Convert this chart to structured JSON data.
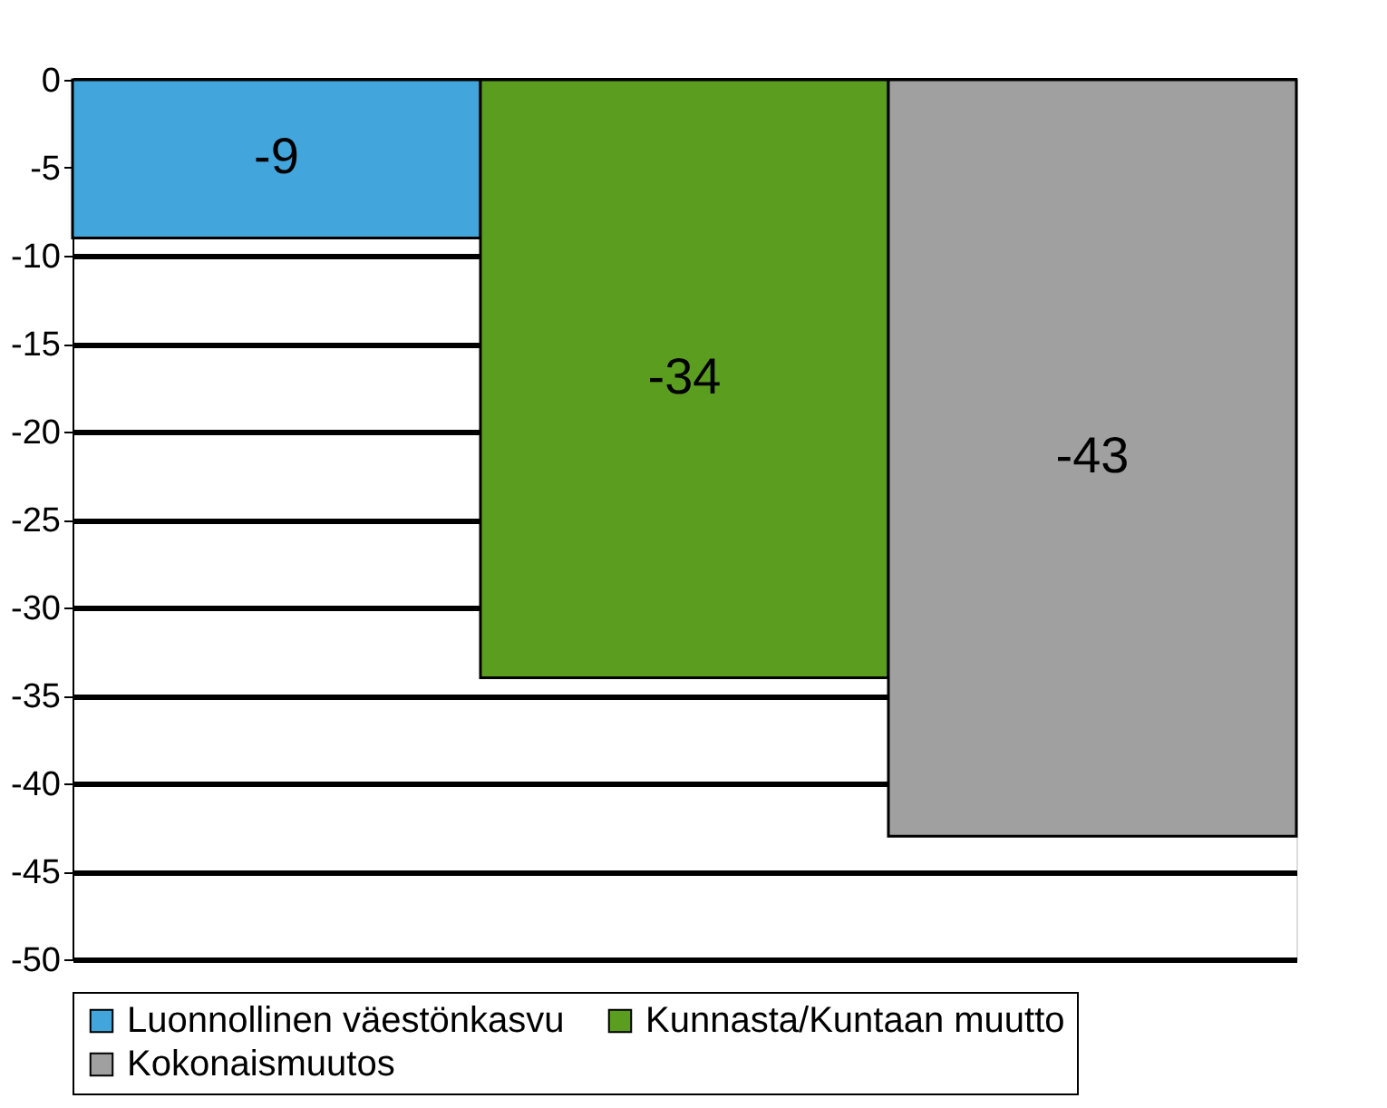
{
  "chart_data": {
    "type": "bar",
    "categories": [
      null,
      null,
      null
    ],
    "series": [
      {
        "name": "Luonnollinen väestönkasvu",
        "color": "#42a6dc",
        "values": [
          -9,
          null,
          null
        ]
      },
      {
        "name": "Kunnasta/Kuntaan muutto",
        "color": "#5b9e1f",
        "values": [
          null,
          -34,
          null
        ]
      },
      {
        "name": "Kokonaismuutos",
        "color": "#a0a0a0",
        "values": [
          null,
          null,
          -43
        ]
      }
    ],
    "ylim": [
      -50,
      0
    ],
    "yticks": [
      -50,
      -45,
      -40,
      -35,
      -30,
      -25,
      -20,
      -15,
      -10,
      -5,
      0
    ],
    "grid": "y",
    "legend": "bottom",
    "data_labels": true
  }
}
